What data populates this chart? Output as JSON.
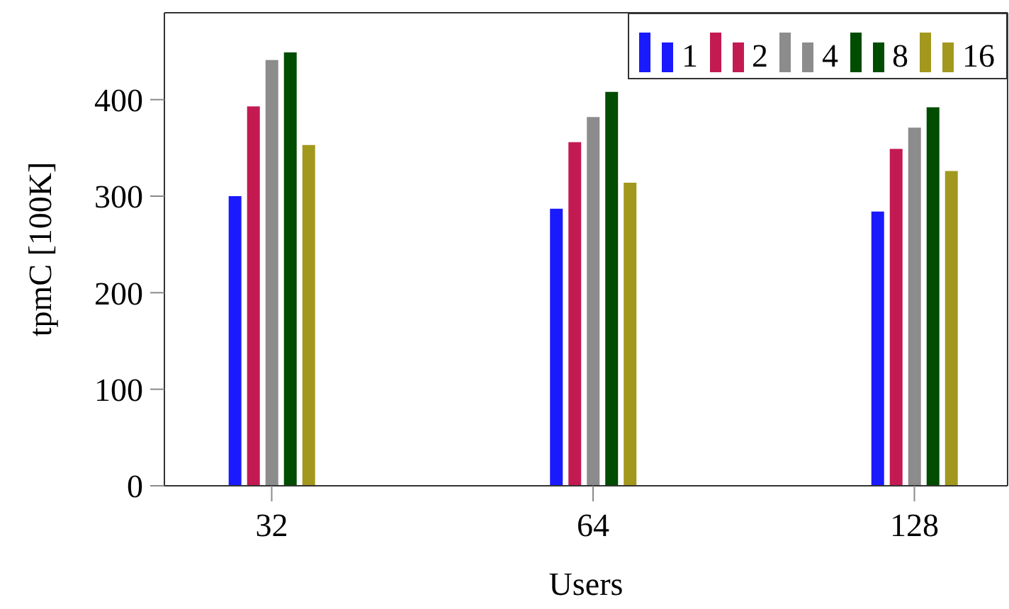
{
  "chart_data": {
    "type": "bar",
    "xlabel": "Users",
    "ylabel": "tpmC [100K]",
    "categories": [
      "32",
      "64",
      "128"
    ],
    "series": [
      {
        "name": "1",
        "color": "#1a1aff",
        "values": [
          300,
          287,
          284
        ]
      },
      {
        "name": "2",
        "color": "#c41a52",
        "values": [
          393,
          356,
          349
        ]
      },
      {
        "name": "4",
        "color": "#8c8c8c",
        "values": [
          441,
          382,
          371
        ]
      },
      {
        "name": "8",
        "color": "#004c00",
        "values": [
          449,
          408,
          392
        ]
      },
      {
        "name": "16",
        "color": "#a2981e",
        "values": [
          353,
          314,
          326
        ]
      }
    ],
    "ylim": [
      0,
      490
    ],
    "yticks": [
      0,
      100,
      200,
      300,
      400
    ],
    "grid": false,
    "legend": "top right"
  }
}
